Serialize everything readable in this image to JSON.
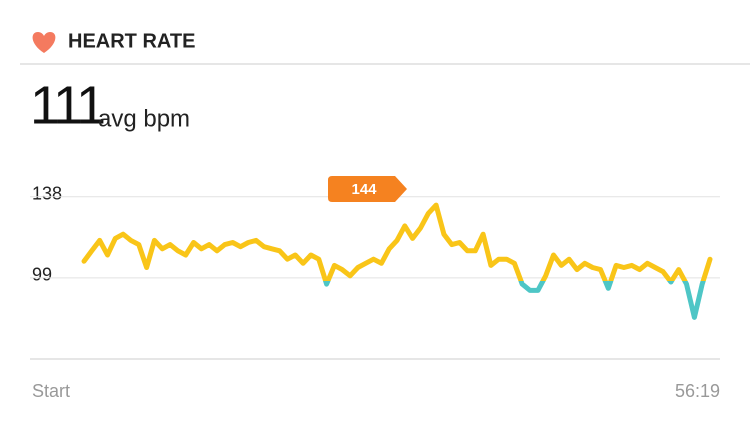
{
  "header": {
    "title": "HEART RATE"
  },
  "summary": {
    "value": "111",
    "unit": "avg bpm"
  },
  "chart_data": {
    "type": "line",
    "x_labels": [
      "Start",
      "56:19"
    ],
    "annotation": "144",
    "ylim": [
      60,
      160
    ],
    "yticks": [
      99,
      138
    ],
    "grid": true,
    "series": [
      {
        "color": "#f9c518",
        "zone_color": "#4ec6c6",
        "values": [
          107,
          112,
          117,
          110,
          118,
          120,
          117,
          115,
          104,
          117,
          113,
          115,
          112,
          110,
          116,
          113,
          115,
          112,
          115,
          116,
          114,
          116,
          117,
          114,
          113,
          112,
          108,
          110,
          106,
          110,
          108,
          96,
          105,
          103,
          100,
          104,
          106,
          108,
          106,
          113,
          117,
          124,
          118,
          123,
          130,
          134,
          120,
          115,
          116,
          112,
          112,
          120,
          105,
          108,
          108,
          106,
          96,
          93,
          93,
          100,
          110,
          105,
          108,
          103,
          106,
          104,
          103,
          94,
          105,
          104,
          105,
          103,
          106,
          104,
          102,
          97,
          103,
          96,
          80,
          96,
          108
        ]
      }
    ]
  }
}
